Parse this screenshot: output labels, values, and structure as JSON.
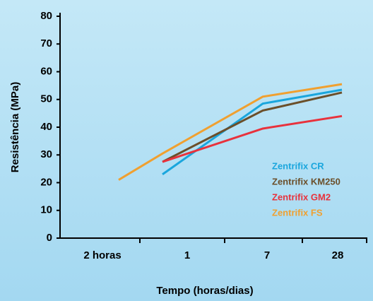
{
  "chart_data": {
    "type": "line",
    "xlabel": "Tempo (horas/dias)",
    "ylabel": "Resistência (MPa)",
    "categories": [
      "2 horas",
      "1",
      "7",
      "28"
    ],
    "series": [
      {
        "name": "Zentrifix CR",
        "color": "#1aa6dd",
        "values": [
          null,
          23,
          48.5,
          53.5
        ]
      },
      {
        "name": "Zentrifix KM250",
        "color": "#6b4f2a",
        "values": [
          null,
          27.5,
          46,
          52.5
        ]
      },
      {
        "name": "Zentrifix GM2",
        "color": "#e8323c",
        "values": [
          null,
          27.5,
          39.5,
          44
        ]
      },
      {
        "name": "Zentrifix FS",
        "color": "#f0a030",
        "values": [
          21,
          30.5,
          51,
          55.5
        ]
      }
    ],
    "ylim": [
      0,
      80
    ],
    "yticks": [
      0,
      10,
      20,
      30,
      40,
      50,
      60,
      70,
      80
    ],
    "legend": "right"
  }
}
